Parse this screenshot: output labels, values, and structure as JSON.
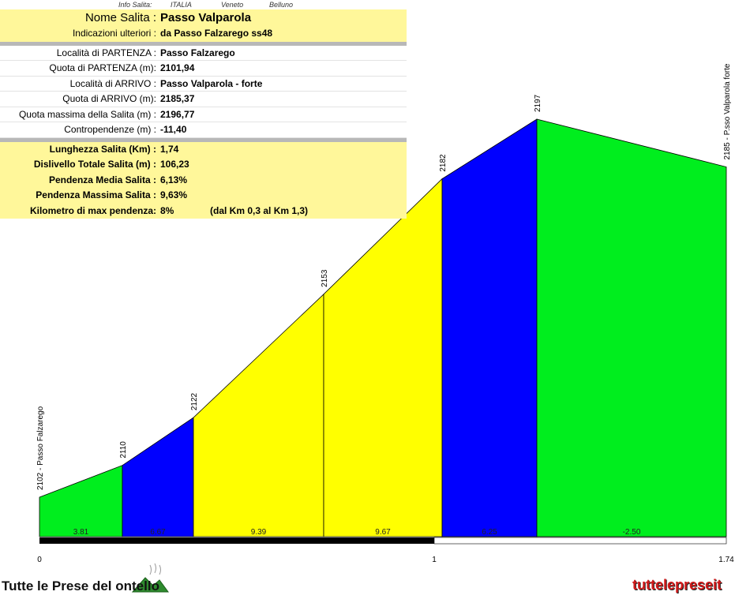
{
  "header": {
    "info_label": "Info Salita:",
    "country": "ITALIA",
    "region": "Veneto",
    "province": "Belluno"
  },
  "info": {
    "name_label": "Nome Salita :",
    "name": "Passo Valparola",
    "notes_label": "Indicazioni ulteriori :",
    "notes": "da Passo Falzarego ss48",
    "start_label": "Località di PARTENZA :",
    "start": "Passo Falzarego",
    "start_alt_label": "Quota di PARTENZA (m):",
    "start_alt": "2101,94",
    "end_label": "Località di ARRIVO :",
    "end": "Passo Valparola - forte",
    "end_alt_label": "Quota di ARRIVO (m):",
    "end_alt": "2185,37",
    "max_alt_label": "Quota massima della Salita (m) :",
    "max_alt": "2196,77",
    "counter_label": "Contropendenze (m) :",
    "counter": "-11,40",
    "length_label": "Lunghezza Salita (Km) :",
    "length": "1,74",
    "gain_label": "Dislivello Totale Salita (m) :",
    "gain": "106,23",
    "avg_label": "Pendenza Media Salita :",
    "avg": "6,13%",
    "maxgrade_label": "Pendenza Massima Salita :",
    "maxgrade": "9,63%",
    "maxkm_label": "Kilometro di max pendenza:",
    "maxkm": "8%",
    "maxkm_range": "(dal Km 0,3 al Km 1,3)"
  },
  "footer": {
    "left_logo": "Tutte le Prese del  ontello",
    "right_logo": "tuttelepreseit"
  },
  "chart_data": {
    "type": "area",
    "xlim": [
      0,
      1.74
    ],
    "x_ticks": [
      "0",
      "1",
      "1.74"
    ],
    "points": [
      {
        "x": 0,
        "y": 2102,
        "label": "2102 - Passo Falzarego"
      },
      {
        "x": 0.21,
        "y": 2110,
        "label": "2110"
      },
      {
        "x": 0.39,
        "y": 2122,
        "label": "2122"
      },
      {
        "x": 0.72,
        "y": 2153,
        "label": "2153"
      },
      {
        "x": 1.02,
        "y": 2182,
        "label": "2182"
      },
      {
        "x": 1.26,
        "y": 2197,
        "label": "2197"
      },
      {
        "x": 1.74,
        "y": 2185,
        "label": "2185 - P.sso Valparola forte"
      }
    ],
    "segments": [
      {
        "grade": "3.81",
        "color": "#00ee1e"
      },
      {
        "grade": "6.67",
        "color": "#0000ff"
      },
      {
        "grade": "9.39",
        "color": "#ffff00"
      },
      {
        "grade": "9.67",
        "color": "#ffff00"
      },
      {
        "grade": "6.25",
        "color": "#0000ff"
      },
      {
        "grade": "-2.50",
        "color": "#00ee1e"
      }
    ]
  }
}
